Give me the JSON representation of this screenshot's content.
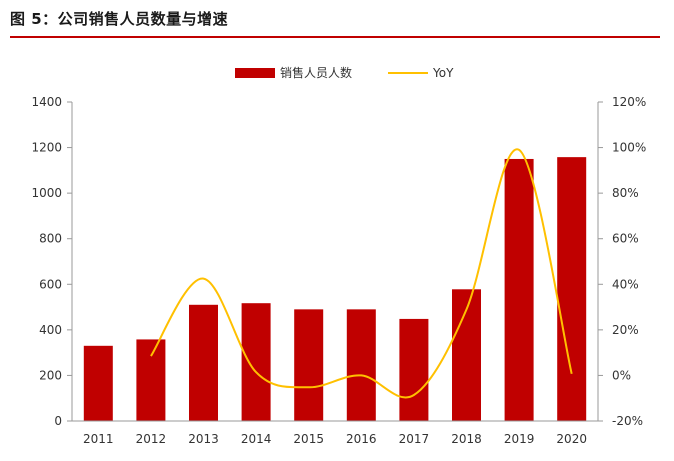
{
  "figure_title": "图 5：公司销售人员数量与增速",
  "chart_data": {
    "type": "bar",
    "categories": [
      "2011",
      "2012",
      "2013",
      "2014",
      "2015",
      "2016",
      "2017",
      "2018",
      "2019",
      "2020"
    ],
    "series": [
      {
        "name": "销售人员人数",
        "type": "bar",
        "axis": "left",
        "color": "#c00000",
        "values": [
          330,
          358,
          510,
          517,
          490,
          490,
          448,
          578,
          1150,
          1158
        ]
      },
      {
        "name": "YoY",
        "type": "line",
        "axis": "right",
        "color": "#ffc000",
        "values": [
          null,
          8.5,
          42.5,
          1.4,
          -5.2,
          0.0,
          -8.6,
          29.0,
          99.0,
          0.7
        ]
      }
    ],
    "y_left": {
      "min": 0,
      "max": 1400,
      "ticks": [
        0,
        200,
        400,
        600,
        800,
        1000,
        1200,
        1400
      ]
    },
    "y_right": {
      "min": -20,
      "max": 120,
      "ticks": [
        "-20%",
        "0%",
        "20%",
        "40%",
        "60%",
        "80%",
        "100%",
        "120%"
      ]
    },
    "legend_position": "top-center",
    "grid": false
  }
}
